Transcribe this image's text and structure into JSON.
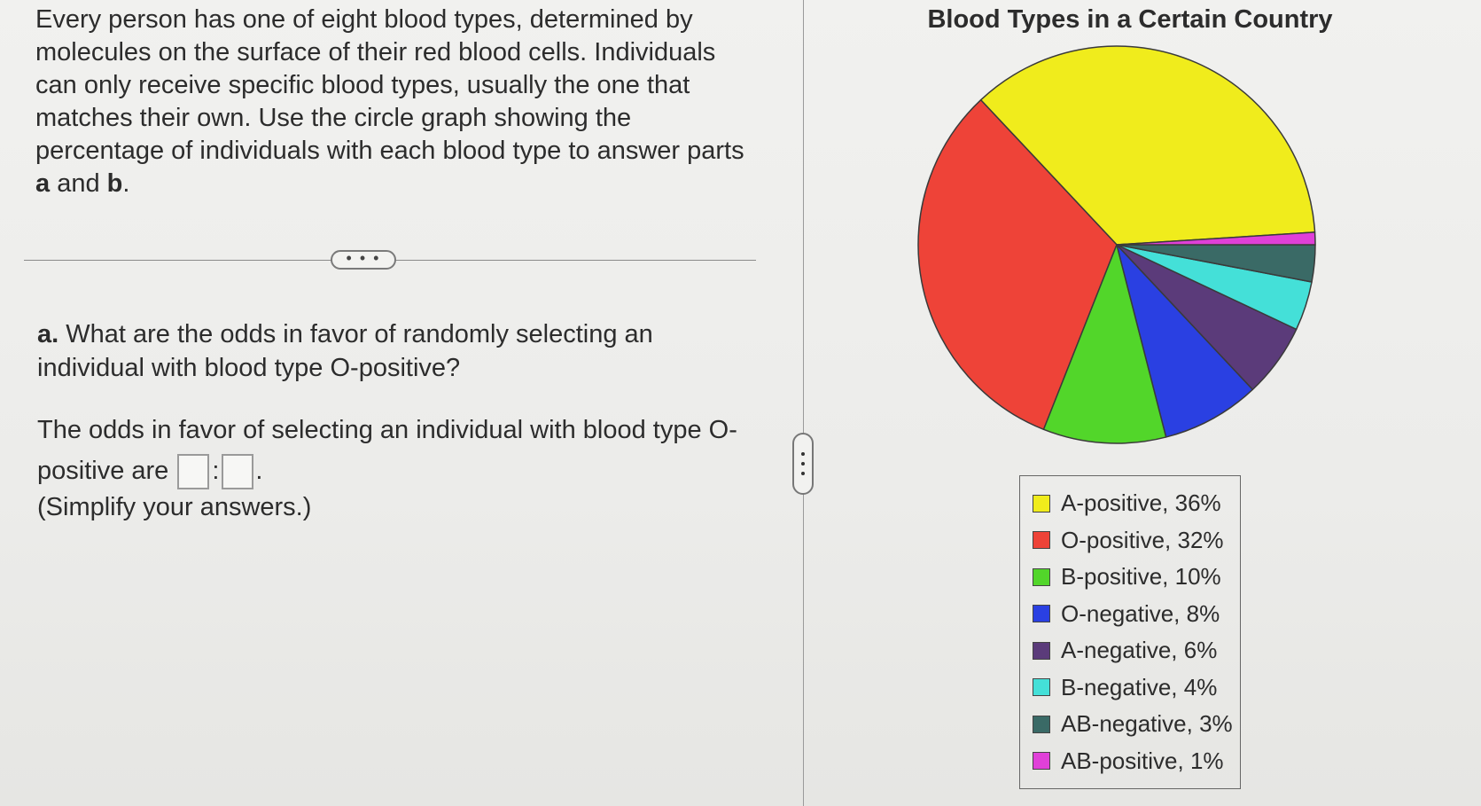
{
  "intro": {
    "text": "Every person has one of eight blood types, determined by molecules on the surface of their red blood cells. Individuals can only receive specific blood types, usually the one that matches their own. Use the circle graph showing the percentage of individuals with each blood type to answer parts ",
    "part_a": "a",
    "and": " and ",
    "part_b": "b",
    "period": "."
  },
  "more_button": {
    "label": "• • •"
  },
  "question": {
    "label": "a.",
    "text": " What are the odds in favor of randomly selecting an individual with blood type O-positive?"
  },
  "answer": {
    "prefix": "The odds in favor of selecting an individual with blood type O-positive are ",
    "separator": ":",
    "suffix": ".",
    "first_value": "",
    "second_value": ""
  },
  "hint": "(Simplify your answers.)",
  "chart_data": {
    "type": "pie",
    "title": "Blood Types in a Certain Country",
    "legend_position": "below",
    "slices": [
      {
        "label": "A-positive, 36%",
        "value": 36,
        "color": "#f0ec1c"
      },
      {
        "label": "O-positive, 32%",
        "value": 32,
        "color": "#ee4338"
      },
      {
        "label": "B-positive, 10%",
        "value": 10,
        "color": "#52d62a"
      },
      {
        "label": "O-negative, 8%",
        "value": 8,
        "color": "#2a40e2"
      },
      {
        "label": "A-negative, 6%",
        "value": 6,
        "color": "#5b3b7a"
      },
      {
        "label": "B-negative, 4%",
        "value": 4,
        "color": "#44e0d8"
      },
      {
        "label": "AB-negative, 3%",
        "value": 3,
        "color": "#3a6a66"
      },
      {
        "label": "AB-positive, 1%",
        "value": 1,
        "color": "#e040d8"
      }
    ]
  }
}
